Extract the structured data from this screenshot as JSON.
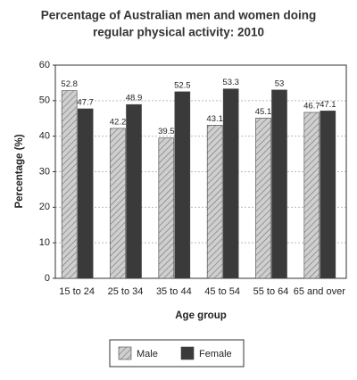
{
  "chart_data": {
    "type": "bar",
    "title": [
      "Percentage of Australian men and women doing",
      "regular physical activity: 2010"
    ],
    "x_label": "Age group",
    "y_label": "Percentage (%)",
    "categories": [
      "15 to 24",
      "25 to 34",
      "35 to 44",
      "45 to 54",
      "55 to 64",
      "65 and over"
    ],
    "series": [
      {
        "name": "Male",
        "color": "#cfcfcf",
        "hatch": true,
        "values": [
          52.8,
          42.2,
          39.5,
          43.1,
          45.1,
          46.7
        ]
      },
      {
        "name": "Female",
        "color": "#3a3a3a",
        "hatch": false,
        "values": [
          47.7,
          48.9,
          52.5,
          53.3,
          53,
          47.1
        ]
      }
    ],
    "ylim": [
      0,
      60
    ],
    "yticks": [
      0,
      10,
      20,
      30,
      40,
      50,
      60
    ],
    "grid": true,
    "legend": "bottom"
  }
}
